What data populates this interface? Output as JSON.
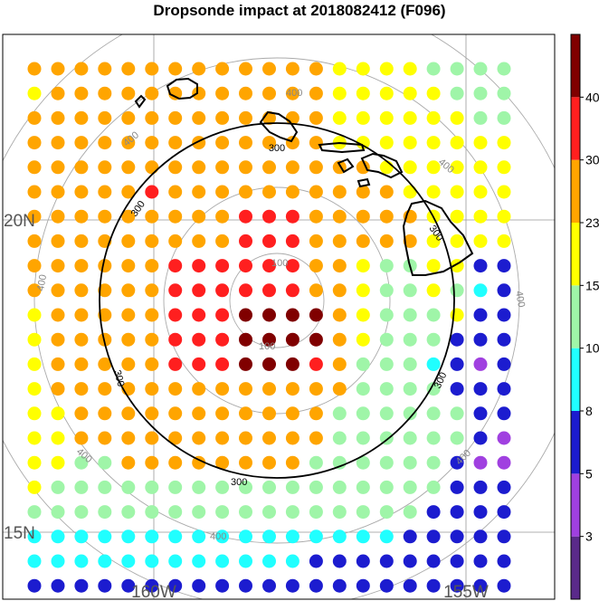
{
  "title": "Dropsonde impact at 2018082412 (F096)",
  "axis_labels": {
    "lat_20": "20N",
    "lat_15": "15N",
    "lon_160": "160W",
    "lon_155": "155W"
  },
  "colorbar": {
    "ticks": [
      "3",
      "5",
      "8",
      "10",
      "15",
      "23",
      "30",
      "40"
    ],
    "colors": [
      "#5a2a8a",
      "#a040e0",
      "#1c1ccf",
      "#20ffff",
      "#9ff5a8",
      "#ffff00",
      "#ffa500",
      "#ff1f1f",
      "#800000"
    ]
  },
  "ring_labels": {
    "r100": "100",
    "r300": "300",
    "r400": "400"
  },
  "map_data": {
    "grid_rows": [
      "GGGGGGGGGGGGGYYYYLLLL",
      "YGGGGGGGGGGGGYYYYYLLL",
      "GGGGGGGGGGGGGYYYYYYLL",
      "GGGGGGGGGGGGGYYYYYYYY",
      "GGGGGGGGGGGGGGGYYYYYY",
      "GGGGGRGGGGGGGGGGYYYYY",
      "GGGGGGGGGRRRGGGGGYYYY",
      "GGGGGGGGGRRRGGGGGYYYY",
      "GGGGGGRRRRRRGGYLLYYYY",
      "GGGGGGRRRRRRGGYLLYLYL",
      "YGGGGGRRRMMMMGYLLLYYL",
      "YGGGGGRRRMMMMGYLLLLYL",
      "YGGGGGRRRMMMRGLLLLLYL",
      "YGGGGGGGGGGGGGLLLLLLL",
      "YYGGGGGGGGGGGLLLLLLLL",
      "YYGGGGGGGGGGGLLLLLLLL",
      "YYLLGGGGGGGGLLLLLLLLL",
      "YLLLLLLLLLLLLLLLLLLLL",
      "LLLLLLLLLLLLLLLLLLLLL",
      "CCCCCCCCCCCCCCCCCCCCC",
      "CCCCCCCCCCCCCCCCCCCCC"
    ],
    "legend": {
      "M": "#800000",
      "R": "#ff1f1f",
      "G": "#ffa500",
      "Y": "#ffff00",
      "L": "#9ff5a8",
      "C": "#20ffff",
      "B": "#1c1ccf",
      "P": "#a040e0"
    },
    "overrides": [
      {
        "row": 8,
        "col": 19,
        "v": "B"
      },
      {
        "row": 8,
        "col": 20,
        "v": "B"
      },
      {
        "row": 9,
        "col": 18,
        "v": "L"
      },
      {
        "row": 9,
        "col": 19,
        "v": "C"
      },
      {
        "row": 9,
        "col": 20,
        "v": "B"
      },
      {
        "row": 10,
        "col": 19,
        "v": "B"
      },
      {
        "row": 10,
        "col": 20,
        "v": "B"
      },
      {
        "row": 11,
        "col": 18,
        "v": "B"
      },
      {
        "row": 11,
        "col": 19,
        "v": "B"
      },
      {
        "row": 11,
        "col": 20,
        "v": "B"
      },
      {
        "row": 12,
        "col": 17,
        "v": "C"
      },
      {
        "row": 12,
        "col": 18,
        "v": "B"
      },
      {
        "row": 12,
        "col": 19,
        "v": "P"
      },
      {
        "row": 12,
        "col": 20,
        "v": "B"
      },
      {
        "row": 13,
        "col": 18,
        "v": "B"
      },
      {
        "row": 13,
        "col": 19,
        "v": "B"
      },
      {
        "row": 13,
        "col": 20,
        "v": "B"
      },
      {
        "row": 14,
        "col": 19,
        "v": "B"
      },
      {
        "row": 14,
        "col": 20,
        "v": "B"
      },
      {
        "row": 15,
        "col": 19,
        "v": "B"
      },
      {
        "row": 15,
        "col": 20,
        "v": "P"
      },
      {
        "row": 16,
        "col": 18,
        "v": "B"
      },
      {
        "row": 16,
        "col": 19,
        "v": "P"
      },
      {
        "row": 16,
        "col": 20,
        "v": "P"
      },
      {
        "row": 17,
        "col": 18,
        "v": "B"
      },
      {
        "row": 17,
        "col": 19,
        "v": "B"
      },
      {
        "row": 17,
        "col": 20,
        "v": "B"
      },
      {
        "row": 18,
        "col": 17,
        "v": "B"
      },
      {
        "row": 18,
        "col": 18,
        "v": "B"
      },
      {
        "row": 18,
        "col": 19,
        "v": "B"
      },
      {
        "row": 18,
        "col": 20,
        "v": "B"
      },
      {
        "row": 19,
        "col": 16,
        "v": "B"
      },
      {
        "row": 19,
        "col": 17,
        "v": "B"
      },
      {
        "row": 19,
        "col": 18,
        "v": "B"
      },
      {
        "row": 19,
        "col": 19,
        "v": "B"
      },
      {
        "row": 19,
        "col": 20,
        "v": "B"
      },
      {
        "row": 20,
        "col": 12,
        "v": "B"
      },
      {
        "row": 20,
        "col": 13,
        "v": "B"
      },
      {
        "row": 20,
        "col": 14,
        "v": "B"
      },
      {
        "row": 20,
        "col": 15,
        "v": "B"
      },
      {
        "row": 20,
        "col": 16,
        "v": "B"
      },
      {
        "row": 20,
        "col": 17,
        "v": "B"
      },
      {
        "row": 20,
        "col": 18,
        "v": "B"
      },
      {
        "row": 20,
        "col": 19,
        "v": "B"
      },
      {
        "row": 20,
        "col": 20,
        "v": "B"
      }
    ],
    "extra_rows": [
      "BBBBBBBBBBBBBBBBBBBBB"
    ]
  }
}
